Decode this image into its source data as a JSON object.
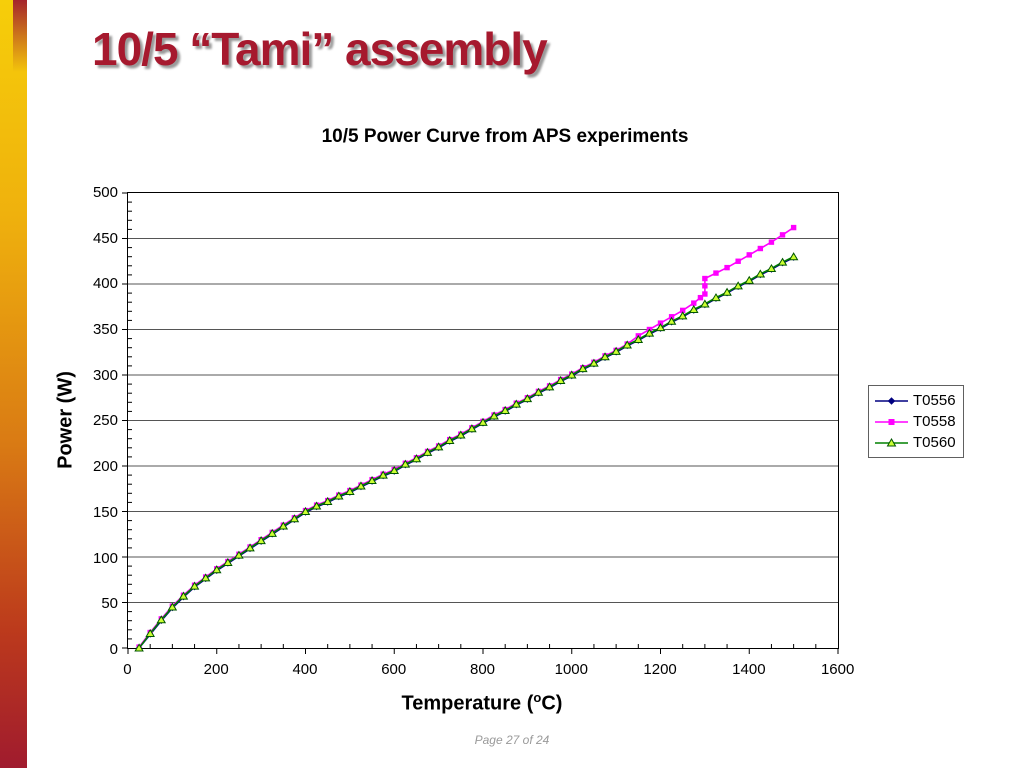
{
  "slide": {
    "title": "10/5 “Tami” assembly",
    "title_color": "#a6192e",
    "footer": "Page 27 of 24"
  },
  "chart_data": {
    "type": "line",
    "title": "10/5 Power Curve from APS experiments",
    "xlabel": "Temperature (°C)",
    "xlabel_parts": {
      "prefix": "Temperature (",
      "sup": "o",
      "suffix": "C)"
    },
    "ylabel": "Power (W)",
    "xlim": [
      0,
      1600
    ],
    "ylim": [
      0,
      500
    ],
    "x_ticks": [
      0,
      200,
      400,
      600,
      800,
      1000,
      1200,
      1400,
      1600
    ],
    "y_ticks": [
      0,
      50,
      100,
      150,
      200,
      250,
      300,
      350,
      400,
      450,
      500
    ],
    "x_minor_step": 50,
    "y_minor_step": 10,
    "grid": "horizontal-major",
    "legend_position": "right",
    "gridline_color": "#555555",
    "axis_color": "#000000",
    "series": [
      {
        "name": "T0556",
        "color": "#000080",
        "marker": "diamond",
        "points": [
          [
            25,
            0
          ],
          [
            50,
            15
          ],
          [
            75,
            30
          ],
          [
            100,
            44
          ],
          [
            125,
            56
          ],
          [
            150,
            67
          ],
          [
            175,
            76
          ],
          [
            200,
            85
          ],
          [
            225,
            93
          ],
          [
            250,
            101
          ],
          [
            275,
            109
          ],
          [
            300,
            117
          ],
          [
            325,
            125
          ],
          [
            350,
            133
          ],
          [
            375,
            141
          ],
          [
            400,
            149
          ],
          [
            425,
            155
          ],
          [
            450,
            160
          ],
          [
            475,
            166
          ],
          [
            500,
            171
          ],
          [
            525,
            177
          ],
          [
            550,
            183
          ],
          [
            575,
            189
          ],
          [
            600,
            194
          ],
          [
            625,
            201
          ],
          [
            650,
            207
          ],
          [
            675,
            214
          ],
          [
            700,
            220
          ],
          [
            725,
            227
          ],
          [
            750,
            233
          ],
          [
            775,
            240
          ],
          [
            800,
            247
          ],
          [
            825,
            254
          ],
          [
            850,
            260
          ],
          [
            875,
            267
          ],
          [
            900,
            273
          ],
          [
            925,
            280
          ],
          [
            950,
            286
          ],
          [
            975,
            293
          ],
          [
            1000,
            299
          ],
          [
            1025,
            306
          ],
          [
            1050,
            312
          ],
          [
            1075,
            319
          ],
          [
            1100,
            325
          ],
          [
            1125,
            332
          ],
          [
            1150,
            338
          ],
          [
            1175,
            345
          ],
          [
            1200,
            351
          ],
          [
            1225,
            358
          ],
          [
            1250,
            364
          ],
          [
            1275,
            371
          ],
          [
            1300,
            377
          ],
          [
            1325,
            384
          ],
          [
            1350,
            390
          ],
          [
            1375,
            397
          ],
          [
            1400,
            403
          ],
          [
            1425,
            410
          ],
          [
            1450,
            416
          ],
          [
            1475,
            423
          ],
          [
            1500,
            429
          ]
        ]
      },
      {
        "name": "T0558",
        "color": "#ff00ff",
        "marker": "square",
        "points": [
          [
            25,
            1
          ],
          [
            50,
            17
          ],
          [
            75,
            32
          ],
          [
            100,
            46
          ],
          [
            125,
            58
          ],
          [
            150,
            69
          ],
          [
            175,
            78
          ],
          [
            200,
            87
          ],
          [
            225,
            95
          ],
          [
            250,
            103
          ],
          [
            275,
            111
          ],
          [
            300,
            119
          ],
          [
            325,
            127
          ],
          [
            350,
            135
          ],
          [
            375,
            143
          ],
          [
            400,
            151
          ],
          [
            425,
            157
          ],
          [
            450,
            162
          ],
          [
            475,
            168
          ],
          [
            500,
            173
          ],
          [
            525,
            179
          ],
          [
            550,
            185
          ],
          [
            575,
            191
          ],
          [
            600,
            196
          ],
          [
            625,
            203
          ],
          [
            650,
            209
          ],
          [
            675,
            216
          ],
          [
            700,
            222
          ],
          [
            725,
            229
          ],
          [
            750,
            235
          ],
          [
            775,
            242
          ],
          [
            800,
            249
          ],
          [
            825,
            256
          ],
          [
            850,
            262
          ],
          [
            875,
            269
          ],
          [
            900,
            275
          ],
          [
            925,
            282
          ],
          [
            950,
            288
          ],
          [
            975,
            295
          ],
          [
            1000,
            301
          ],
          [
            1025,
            308
          ],
          [
            1050,
            314
          ],
          [
            1075,
            321
          ],
          [
            1100,
            327
          ],
          [
            1125,
            334
          ],
          [
            1150,
            343
          ],
          [
            1175,
            350
          ],
          [
            1200,
            357
          ],
          [
            1225,
            364
          ],
          [
            1250,
            371
          ],
          [
            1275,
            379
          ],
          [
            1290,
            385
          ],
          [
            1300,
            389
          ],
          [
            1300,
            398
          ],
          [
            1300,
            406
          ],
          [
            1325,
            412
          ],
          [
            1350,
            418
          ],
          [
            1375,
            425
          ],
          [
            1400,
            432
          ],
          [
            1425,
            439
          ],
          [
            1450,
            446
          ],
          [
            1475,
            454
          ],
          [
            1500,
            462
          ]
        ]
      },
      {
        "name": "T0560",
        "color": "#008000",
        "marker": "triangle",
        "marker_fill": "#ccff33",
        "marker_stroke": "#005500",
        "points": [
          [
            25,
            0
          ],
          [
            50,
            16
          ],
          [
            75,
            31
          ],
          [
            100,
            45
          ],
          [
            125,
            57
          ],
          [
            150,
            68
          ],
          [
            175,
            77
          ],
          [
            200,
            86
          ],
          [
            225,
            94
          ],
          [
            250,
            102
          ],
          [
            275,
            110
          ],
          [
            300,
            118
          ],
          [
            325,
            126
          ],
          [
            350,
            134
          ],
          [
            375,
            142
          ],
          [
            400,
            150
          ],
          [
            425,
            156
          ],
          [
            450,
            161
          ],
          [
            475,
            167
          ],
          [
            500,
            172
          ],
          [
            525,
            178
          ],
          [
            550,
            184
          ],
          [
            575,
            190
          ],
          [
            600,
            195
          ],
          [
            625,
            202
          ],
          [
            650,
            208
          ],
          [
            675,
            215
          ],
          [
            700,
            221
          ],
          [
            725,
            228
          ],
          [
            750,
            234
          ],
          [
            775,
            241
          ],
          [
            800,
            248
          ],
          [
            825,
            255
          ],
          [
            850,
            261
          ],
          [
            875,
            268
          ],
          [
            900,
            274
          ],
          [
            925,
            281
          ],
          [
            950,
            287
          ],
          [
            975,
            294
          ],
          [
            1000,
            300
          ],
          [
            1025,
            307
          ],
          [
            1050,
            313
          ],
          [
            1075,
            320
          ],
          [
            1100,
            326
          ],
          [
            1125,
            333
          ],
          [
            1150,
            339
          ],
          [
            1175,
            346
          ],
          [
            1200,
            352
          ],
          [
            1225,
            359
          ],
          [
            1250,
            365
          ],
          [
            1275,
            372
          ],
          [
            1300,
            378
          ],
          [
            1325,
            385
          ],
          [
            1350,
            391
          ],
          [
            1375,
            398
          ],
          [
            1400,
            404
          ],
          [
            1425,
            411
          ],
          [
            1450,
            417
          ],
          [
            1475,
            424
          ],
          [
            1500,
            430
          ]
        ]
      }
    ]
  }
}
